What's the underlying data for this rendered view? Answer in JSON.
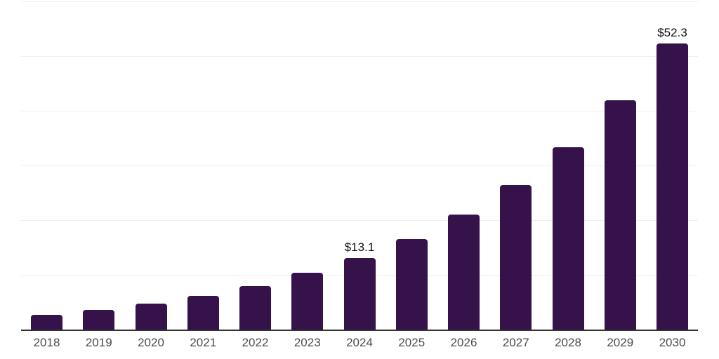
{
  "chart_data": {
    "type": "bar",
    "title": "",
    "xlabel": "",
    "ylabel": "",
    "categories": [
      "2018",
      "2019",
      "2020",
      "2021",
      "2022",
      "2023",
      "2024",
      "2025",
      "2026",
      "2027",
      "2028",
      "2029",
      "2030"
    ],
    "values": [
      2.7,
      3.6,
      4.7,
      6.1,
      7.9,
      10.4,
      13.1,
      16.6,
      21.0,
      26.4,
      33.4,
      41.9,
      52.3
    ],
    "data_labels": {
      "2024": "$13.1",
      "2030": "$52.3"
    },
    "ylim": [
      0,
      60
    ],
    "grid_step": 10,
    "grid": "horizontal-only",
    "legend_position": "none",
    "y_axis_tick_labels": "hidden",
    "colors": {
      "bar_fill": "#35124a",
      "axis_line": "#333333",
      "gridline": "#f0f0f0",
      "x_tick_label": "#4c4c4c",
      "data_label": "#0f0f0f",
      "background": "#ffffff"
    }
  }
}
